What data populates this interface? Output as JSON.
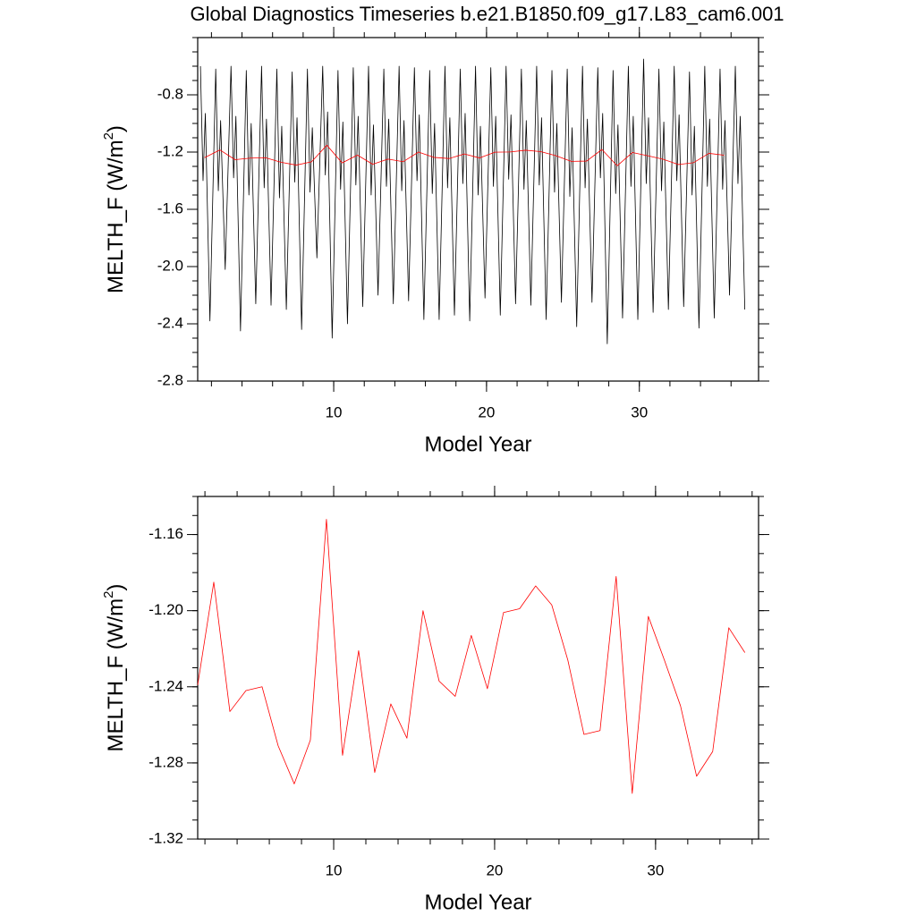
{
  "chart_data": [
    {
      "type": "line",
      "title": "Global Diagnostics Timeseries b.e21.B1850.f09_g17.L83_cam6.001",
      "xlabel": "Model Year",
      "ylabel": "MELTH_F (W/m",
      "ylabel_sup": "2",
      "ylabel_end": ")",
      "xlim": [
        1.1,
        37.8
      ],
      "xticks": [
        10,
        20,
        30
      ],
      "ylim": [
        -2.8,
        -0.4
      ],
      "yticks": [
        -0.8,
        -1.2,
        -1.6,
        {
          "value": -2.0,
          "label": "-2.0"
        },
        -2.4,
        -2.8
      ],
      "series": [
        {
          "color": "#000000",
          "x": [
            1.28,
            1.45,
            1.6,
            1.9,
            2.28,
            2.45,
            2.6,
            2.9,
            3.28,
            3.45,
            3.6,
            3.9,
            4.28,
            4.45,
            4.6,
            4.9,
            5.28,
            5.45,
            5.6,
            5.9,
            6.28,
            6.45,
            6.6,
            6.9,
            7.28,
            7.45,
            7.6,
            7.9,
            8.28,
            8.45,
            8.6,
            8.9,
            9.28,
            9.45,
            9.6,
            9.9,
            10.28,
            10.45,
            10.6,
            10.9,
            11.28,
            11.45,
            11.6,
            11.9,
            12.28,
            12.45,
            12.6,
            12.9,
            13.28,
            13.45,
            13.6,
            13.9,
            14.28,
            14.45,
            14.6,
            14.9,
            15.28,
            15.45,
            15.6,
            15.9,
            16.28,
            16.45,
            16.6,
            16.9,
            17.28,
            17.45,
            17.6,
            17.9,
            18.28,
            18.45,
            18.6,
            18.9,
            19.28,
            19.45,
            19.6,
            19.9,
            20.28,
            20.45,
            20.6,
            20.9,
            21.28,
            21.45,
            21.6,
            21.9,
            22.28,
            22.45,
            22.6,
            22.9,
            23.28,
            23.45,
            23.6,
            23.9,
            24.28,
            24.45,
            24.6,
            24.9,
            25.28,
            25.45,
            25.6,
            25.9,
            26.28,
            26.45,
            26.6,
            26.9,
            27.28,
            27.45,
            27.6,
            27.9,
            28.28,
            28.45,
            28.6,
            28.9,
            29.28,
            29.45,
            29.6,
            29.9,
            30.28,
            30.45,
            30.6,
            30.9,
            31.28,
            31.45,
            31.6,
            31.9,
            32.28,
            32.45,
            32.6,
            32.9,
            33.28,
            33.45,
            33.6,
            33.9,
            34.28,
            34.45,
            34.6,
            34.9,
            35.28,
            35.45,
            35.6,
            35.9,
            36.28,
            36.45,
            36.6,
            36.9
          ],
          "values": [
            -0.6,
            -1.4,
            -0.93,
            -2.38,
            -0.62,
            -1.47,
            -0.98,
            -2.02,
            -0.6,
            -1.38,
            -0.95,
            -2.45,
            -0.63,
            -1.5,
            -1.0,
            -2.26,
            -0.6,
            -1.45,
            -0.97,
            -2.27,
            -0.62,
            -1.52,
            -1.02,
            -2.3,
            -0.64,
            -1.41,
            -0.96,
            -2.44,
            -0.62,
            -1.48,
            -1.03,
            -1.94,
            -0.6,
            -1.36,
            -0.92,
            -2.5,
            -0.63,
            -1.46,
            -0.99,
            -2.4,
            -0.61,
            -1.43,
            -0.95,
            -2.28,
            -0.6,
            -1.5,
            -1.01,
            -2.2,
            -0.62,
            -1.44,
            -0.97,
            -2.26,
            -0.6,
            -1.47,
            -0.98,
            -2.24,
            -0.61,
            -1.4,
            -0.94,
            -2.37,
            -0.63,
            -1.49,
            -1.0,
            -2.37,
            -0.6,
            -1.45,
            -0.96,
            -2.34,
            -0.62,
            -1.42,
            -0.93,
            -2.38,
            -0.6,
            -1.5,
            -1.02,
            -2.22,
            -0.61,
            -1.44,
            -0.95,
            -2.34,
            -0.6,
            -1.39,
            -0.94,
            -2.26,
            -0.62,
            -1.46,
            -0.98,
            -2.27,
            -0.6,
            -1.43,
            -0.96,
            -2.37,
            -0.63,
            -1.48,
            -1.0,
            -2.25,
            -0.62,
            -1.51,
            -1.03,
            -2.42,
            -0.6,
            -1.45,
            -0.97,
            -2.25,
            -0.61,
            -1.38,
            -0.93,
            -2.54,
            -0.63,
            -1.49,
            -1.01,
            -2.36,
            -0.6,
            -1.44,
            -0.95,
            -2.37,
            -0.55,
            -1.42,
            -0.96,
            -2.32,
            -0.62,
            -1.47,
            -0.99,
            -2.3,
            -0.6,
            -1.4,
            -0.94,
            -2.28,
            -0.64,
            -1.5,
            -1.02,
            -2.43,
            -0.6,
            -1.44,
            -0.97,
            -2.36,
            -0.62,
            -1.46,
            -0.98,
            -2.2,
            -0.6,
            -1.42,
            -0.95,
            -2.3
          ]
        },
        {
          "color": "#ff0000",
          "x": [
            1.55,
            2.55,
            3.55,
            4.55,
            5.55,
            6.55,
            7.55,
            8.55,
            9.55,
            10.55,
            11.55,
            12.55,
            13.55,
            14.55,
            15.55,
            16.55,
            17.55,
            18.55,
            19.55,
            20.55,
            21.55,
            22.55,
            23.55,
            24.55,
            25.55,
            26.55,
            27.55,
            28.55,
            29.55,
            30.55,
            31.55,
            32.55,
            33.55,
            34.55,
            35.55
          ],
          "values": [
            -1.239,
            -1.185,
            -1.253,
            -1.242,
            -1.24,
            -1.271,
            -1.291,
            -1.268,
            -1.152,
            -1.276,
            -1.221,
            -1.285,
            -1.249,
            -1.267,
            -1.2,
            -1.237,
            -1.245,
            -1.213,
            -1.241,
            -1.201,
            -1.199,
            -1.187,
            -1.197,
            -1.226,
            -1.265,
            -1.263,
            -1.182,
            -1.296,
            -1.203,
            -1.226,
            -1.25,
            -1.287,
            -1.274,
            -1.209,
            -1.222
          ]
        }
      ]
    },
    {
      "type": "line",
      "xlabel": "Model Year",
      "ylabel": "MELTH_F (W/m",
      "ylabel_sup": "2",
      "ylabel_end": ")",
      "xlim": [
        1.55,
        36.4
      ],
      "xticks": [
        10,
        20,
        30
      ],
      "ylim": [
        -1.32,
        -1.14
      ],
      "yticks": [
        -1.16,
        {
          "value": -1.2,
          "label": "-1.20"
        },
        -1.24,
        -1.28,
        -1.32
      ],
      "series": [
        {
          "color": "#ff0000",
          "x": [
            1.55,
            2.55,
            3.55,
            4.55,
            5.55,
            6.55,
            7.55,
            8.55,
            9.55,
            10.55,
            11.55,
            12.55,
            13.55,
            14.55,
            15.55,
            16.55,
            17.55,
            18.55,
            19.55,
            20.55,
            21.55,
            22.55,
            23.55,
            24.55,
            25.55,
            26.55,
            27.55,
            28.55,
            29.55,
            30.55,
            31.55,
            32.55,
            33.55,
            34.55,
            35.55
          ],
          "values": [
            -1.239,
            -1.185,
            -1.253,
            -1.242,
            -1.24,
            -1.271,
            -1.291,
            -1.268,
            -1.152,
            -1.276,
            -1.221,
            -1.285,
            -1.249,
            -1.267,
            -1.2,
            -1.237,
            -1.245,
            -1.213,
            -1.241,
            -1.201,
            -1.199,
            -1.187,
            -1.197,
            -1.226,
            -1.265,
            -1.263,
            -1.182,
            -1.296,
            -1.203,
            -1.226,
            -1.25,
            -1.287,
            -1.274,
            -1.209,
            -1.222
          ]
        }
      ]
    }
  ]
}
